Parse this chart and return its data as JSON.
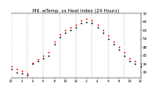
{
  "title": "Mil. wTemp. vs Heat Index (24 Hours)",
  "title_fontsize": 3.8,
  "background_color": "#ffffff",
  "plot_bg_color": "#ffffff",
  "grid_color": "#888888",
  "temp": [
    32,
    30,
    29,
    28,
    36,
    38,
    40,
    42,
    50,
    55,
    58,
    60,
    62,
    65,
    66,
    65,
    62,
    58,
    54,
    50,
    46,
    42,
    38,
    36,
    34
  ],
  "heat_index": [
    34,
    32,
    31,
    29,
    37,
    39,
    42,
    44,
    52,
    57,
    60,
    62,
    64,
    67,
    68,
    67,
    64,
    60,
    56,
    52,
    48,
    44,
    40,
    38,
    36
  ],
  "temp_color": "#000000",
  "heat_color": "#ff0000",
  "marker_size": 1.5,
  "ylim": [
    26,
    72
  ],
  "yticks": [
    30,
    36,
    42,
    48,
    54,
    60,
    66,
    72
  ],
  "ytick_labels": [
    "30",
    "36",
    "42",
    "48",
    "54",
    "60",
    "66",
    "72"
  ],
  "ytick_fontsize": 3.2,
  "xtick_fontsize": 2.8,
  "xtick_positions": [
    0,
    2,
    4,
    6,
    8,
    10,
    12,
    14,
    16,
    18,
    20,
    22,
    24
  ],
  "xtick_labels": [
    "12",
    "2",
    "4",
    "6",
    "8",
    "10",
    "12",
    "2",
    "4",
    "6",
    "8",
    "10",
    "12"
  ],
  "vgrid_positions": [
    0,
    3,
    6,
    9,
    12,
    15,
    18,
    21,
    24
  ]
}
